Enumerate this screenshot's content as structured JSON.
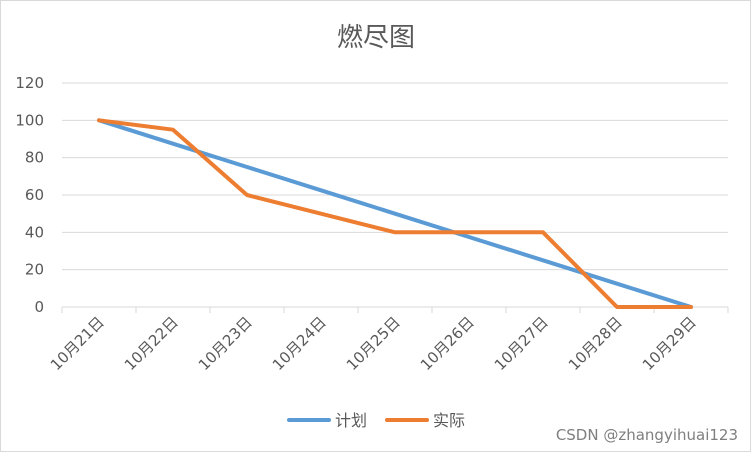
{
  "chart_data": {
    "type": "line",
    "title": "燃尽图",
    "xlabel": "",
    "ylabel": "",
    "categories": [
      "10月21日",
      "10月22日",
      "10月23日",
      "10月24日",
      "10月25日",
      "10月26日",
      "10月27日",
      "10月28日",
      "10月29日"
    ],
    "ylim": [
      0,
      120
    ],
    "yticks": [
      "0",
      "20",
      "40",
      "60",
      "80",
      "100",
      "120"
    ],
    "grid": true,
    "legend_position": "bottom",
    "series": [
      {
        "name": "计划",
        "color": "#5B9BD5",
        "values": [
          100,
          87.5,
          75,
          62.5,
          50,
          37.5,
          25,
          12.5,
          0
        ]
      },
      {
        "name": "实际",
        "color": "#ED7D31",
        "values": [
          100,
          95,
          60,
          50,
          40,
          40,
          40,
          0,
          0
        ]
      }
    ]
  },
  "watermark": "CSDN @zhangyihuai123"
}
